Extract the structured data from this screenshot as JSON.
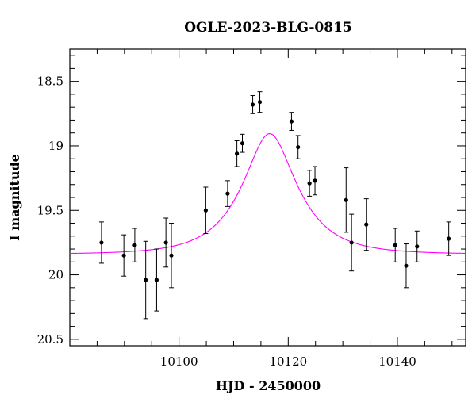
{
  "chart_data": {
    "type": "scatter",
    "title": "OGLE-2023-BLG-0815",
    "xlabel": "HJD - 2450000",
    "ylabel": "I magnitude",
    "xlim": [
      10080,
      10152.5
    ],
    "ylim": [
      20.55,
      18.25
    ],
    "y_inverted": true,
    "grid": false,
    "x_ticks": [
      10100,
      10120,
      10140
    ],
    "y_ticks": [
      18.5,
      19,
      19.5,
      20,
      20.5
    ],
    "x_tick_labels": [
      "10100",
      "10120",
      "10140"
    ],
    "y_tick_labels": [
      "18.5",
      "19",
      "19.5",
      "20",
      "20.5"
    ],
    "colors": {
      "points": "#000000",
      "model": "#ff00ff"
    },
    "series": [
      {
        "type": "scatter_errorbar",
        "points": [
          {
            "x": 10085.8,
            "y": 19.75,
            "err": 0.16
          },
          {
            "x": 10089.9,
            "y": 19.85,
            "err": 0.16
          },
          {
            "x": 10091.9,
            "y": 19.77,
            "err": 0.13
          },
          {
            "x": 10093.9,
            "y": 20.04,
            "err": 0.3
          },
          {
            "x": 10095.9,
            "y": 20.04,
            "err": 0.24
          },
          {
            "x": 10097.6,
            "y": 19.75,
            "err": 0.19
          },
          {
            "x": 10098.6,
            "y": 19.85,
            "err": 0.25
          },
          {
            "x": 10104.9,
            "y": 19.5,
            "err": 0.18
          },
          {
            "x": 10108.9,
            "y": 19.37,
            "err": 0.1
          },
          {
            "x": 10110.6,
            "y": 19.06,
            "err": 0.1
          },
          {
            "x": 10111.6,
            "y": 18.98,
            "err": 0.07
          },
          {
            "x": 10113.5,
            "y": 18.68,
            "err": 0.07
          },
          {
            "x": 10114.8,
            "y": 18.66,
            "err": 0.08
          },
          {
            "x": 10120.6,
            "y": 18.81,
            "err": 0.07
          },
          {
            "x": 10121.8,
            "y": 19.01,
            "err": 0.09
          },
          {
            "x": 10123.9,
            "y": 19.29,
            "err": 0.1
          },
          {
            "x": 10124.9,
            "y": 19.27,
            "err": 0.11
          },
          {
            "x": 10130.6,
            "y": 19.42,
            "err": 0.25
          },
          {
            "x": 10131.6,
            "y": 19.75,
            "err": 0.22
          },
          {
            "x": 10134.3,
            "y": 19.61,
            "err": 0.2
          },
          {
            "x": 10139.6,
            "y": 19.77,
            "err": 0.13
          },
          {
            "x": 10141.6,
            "y": 19.93,
            "err": 0.17
          },
          {
            "x": 10143.6,
            "y": 19.78,
            "err": 0.12
          },
          {
            "x": 10149.4,
            "y": 19.72,
            "err": 0.13
          }
        ]
      },
      {
        "type": "model_curve",
        "model": {
          "t0": 10116.6,
          "u0": 0.455,
          "tE": 9.0,
          "baseline_mag": 19.84
        }
      }
    ]
  }
}
